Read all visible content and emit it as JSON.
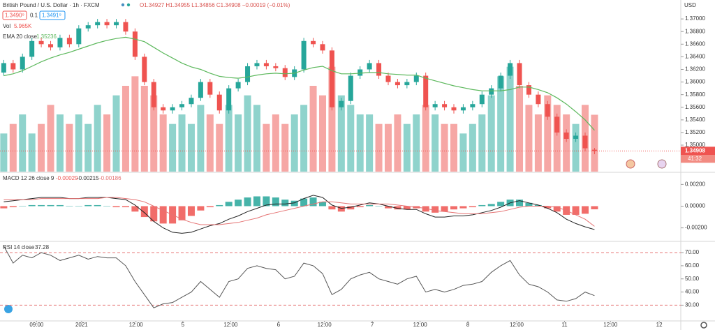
{
  "header": {
    "symbol": "British Pound / U.S. Dollar · 1h · FXCM",
    "ohlc": "O1.34927 H1.34955 L1.34856 C1.34908 −0.00019 (−0.01%)",
    "bid": "1.3490⁹",
    "spread": "0.1",
    "ask": "1.3491⁹"
  },
  "chart_data": [
    {
      "type": "candlestick",
      "up_color": "#26a69a",
      "down_color": "#ef5350",
      "y_unit": "USD",
      "last_price_label": "1.34908",
      "countdown": "41:32",
      "xlim": [
        -0.4,
        72.2
      ],
      "x_ticks": [
        {
          "value": 3.5,
          "label": "09:00"
        },
        {
          "value": 8.3,
          "label": "2021"
        },
        {
          "value": 14.1,
          "label": "12:00"
        },
        {
          "value": 19.1,
          "label": "5"
        },
        {
          "value": 24.2,
          "label": "12:00"
        },
        {
          "value": 29.3,
          "label": "6"
        },
        {
          "value": 34.2,
          "label": "12:00"
        },
        {
          "value": 39.3,
          "label": "7"
        },
        {
          "value": 44.4,
          "label": "12:00"
        },
        {
          "value": 49.5,
          "label": "8"
        },
        {
          "value": 54.7,
          "label": "12:00"
        },
        {
          "value": 59.8,
          "label": "11"
        },
        {
          "value": 64.7,
          "label": "12:00"
        },
        {
          "value": 69.9,
          "label": "12"
        }
      ],
      "ylim": [
        1.3458,
        1.373
      ],
      "yticks": [
        {
          "value": 1.35,
          "label": "1.35000"
        },
        {
          "value": 1.352,
          "label": "1.35200"
        },
        {
          "value": 1.354,
          "label": "1.35400"
        },
        {
          "value": 1.356,
          "label": "1.35600"
        },
        {
          "value": 1.358,
          "label": "1.35800"
        },
        {
          "value": 1.36,
          "label": "1.36000"
        },
        {
          "value": 1.362,
          "label": "1.36200"
        },
        {
          "value": 1.364,
          "label": "1.36400"
        },
        {
          "value": 1.366,
          "label": "1.36600"
        },
        {
          "value": 1.368,
          "label": "1.36800"
        },
        {
          "value": 1.37,
          "label": "1.37000"
        }
      ],
      "open": [
        1.3615,
        1.363,
        1.362,
        1.364,
        1.3665,
        1.366,
        1.3655,
        1.367,
        1.366,
        1.3685,
        1.369,
        1.3695,
        1.369,
        1.3695,
        1.368,
        1.364,
        1.36,
        1.356,
        1.3555,
        1.356,
        1.3565,
        1.3575,
        1.36,
        1.358,
        1.3555,
        1.359,
        1.36,
        1.3625,
        1.363,
        1.3625,
        1.3622,
        1.3608,
        1.362,
        1.3665,
        1.366,
        1.365,
        1.356,
        1.357,
        1.361,
        1.362,
        1.363,
        1.361,
        1.36,
        1.3595,
        1.36,
        1.361,
        1.356,
        1.3565,
        1.356,
        1.3555,
        1.356,
        1.3565,
        1.358,
        1.359,
        1.361,
        1.363,
        1.3595,
        1.358,
        1.3565,
        1.3545,
        1.352,
        1.351,
        1.3515,
        1.34927
      ],
      "high": [
        1.3635,
        1.3635,
        1.3645,
        1.367,
        1.367,
        1.3665,
        1.3675,
        1.3675,
        1.369,
        1.3695,
        1.37,
        1.37,
        1.37,
        1.37,
        1.3685,
        1.3645,
        1.3605,
        1.3565,
        1.3565,
        1.357,
        1.358,
        1.3605,
        1.3605,
        1.3585,
        1.3595,
        1.3605,
        1.363,
        1.3635,
        1.3635,
        1.363,
        1.3627,
        1.3625,
        1.367,
        1.367,
        1.3665,
        1.3655,
        1.3575,
        1.3615,
        1.3625,
        1.3635,
        1.3635,
        1.3615,
        1.3605,
        1.3605,
        1.3615,
        1.3615,
        1.357,
        1.357,
        1.3565,
        1.3565,
        1.357,
        1.3585,
        1.3595,
        1.3615,
        1.3635,
        1.3635,
        1.36,
        1.3585,
        1.357,
        1.355,
        1.3525,
        1.352,
        1.352,
        1.34955
      ],
      "low": [
        1.361,
        1.3615,
        1.3615,
        1.3635,
        1.3655,
        1.365,
        1.365,
        1.3655,
        1.3655,
        1.368,
        1.3685,
        1.3685,
        1.3685,
        1.3675,
        1.3635,
        1.3595,
        1.3555,
        1.355,
        1.355,
        1.3555,
        1.356,
        1.357,
        1.3575,
        1.355,
        1.355,
        1.3585,
        1.3595,
        1.362,
        1.362,
        1.3617,
        1.3603,
        1.3603,
        1.3615,
        1.3655,
        1.3645,
        1.3555,
        1.3555,
        1.3565,
        1.3605,
        1.3615,
        1.3605,
        1.3595,
        1.359,
        1.359,
        1.3595,
        1.3555,
        1.3555,
        1.3555,
        1.355,
        1.355,
        1.3555,
        1.356,
        1.3575,
        1.3585,
        1.3605,
        1.359,
        1.3575,
        1.356,
        1.354,
        1.3515,
        1.3505,
        1.3505,
        1.349,
        1.34856
      ],
      "close": [
        1.363,
        1.362,
        1.364,
        1.3665,
        1.366,
        1.3655,
        1.367,
        1.366,
        1.3685,
        1.369,
        1.3695,
        1.369,
        1.3695,
        1.368,
        1.364,
        1.36,
        1.356,
        1.3555,
        1.356,
        1.3565,
        1.3575,
        1.36,
        1.358,
        1.3555,
        1.359,
        1.36,
        1.3625,
        1.363,
        1.3625,
        1.3622,
        1.3608,
        1.362,
        1.3665,
        1.366,
        1.365,
        1.356,
        1.357,
        1.361,
        1.362,
        1.363,
        1.361,
        1.36,
        1.3595,
        1.36,
        1.361,
        1.356,
        1.3565,
        1.356,
        1.3555,
        1.356,
        1.3565,
        1.358,
        1.359,
        1.361,
        1.363,
        1.3595,
        1.358,
        1.3565,
        1.3545,
        1.352,
        1.351,
        1.3515,
        1.3495,
        1.34908
      ],
      "ema": {
        "name": "EMA 20 close",
        "value_label": "1.35236",
        "color": "#5cb85c",
        "values": [
          1.361,
          1.3613,
          1.3618,
          1.3625,
          1.3632,
          1.3638,
          1.3643,
          1.3647,
          1.3652,
          1.3657,
          1.3662,
          1.3666,
          1.3669,
          1.3671,
          1.3668,
          1.3664,
          1.3655,
          1.3646,
          1.3638,
          1.363,
          1.3624,
          1.362,
          1.3614,
          1.3609,
          1.3607,
          1.3606,
          1.3608,
          1.3611,
          1.3613,
          1.3614,
          1.3613,
          1.3614,
          1.3619,
          1.3623,
          1.3625,
          1.3618,
          1.3613,
          1.3613,
          1.3614,
          1.3615,
          1.3615,
          1.3613,
          1.3612,
          1.3611,
          1.3611,
          1.3606,
          1.3602,
          1.3598,
          1.3594,
          1.3591,
          1.3588,
          1.3586,
          1.3586,
          1.3586,
          1.3588,
          1.3592,
          1.3592,
          1.3588,
          1.3583,
          1.3575,
          1.3565,
          1.3553,
          1.354,
          1.35236
        ]
      },
      "volume": {
        "name": "Vol",
        "value_label": "5.965K",
        "up_color": "#8fd3cc",
        "down_color": "#f6a7a5",
        "ylim": [
          0,
          18
        ],
        "values": [
          4,
          5,
          6,
          4,
          5,
          7,
          6,
          5,
          6,
          5,
          7,
          6,
          8,
          9,
          10,
          9,
          8,
          6,
          5,
          6,
          5,
          7,
          6,
          5,
          7,
          6,
          8,
          7,
          5,
          6,
          5,
          6,
          7,
          9,
          8,
          11,
          8,
          7,
          6,
          6,
          5,
          5,
          6,
          5,
          6,
          7,
          6,
          5,
          5,
          4,
          5,
          6,
          8,
          10,
          11,
          9,
          7,
          6,
          8,
          7,
          6,
          5,
          7,
          5.965
        ]
      }
    },
    {
      "type": "macd",
      "name": "MACD 12 26 close 9",
      "hist_label": "-0.00029",
      "macd_label": "-0.00215",
      "signal_label": "-0.00186",
      "macd_color": "#222222",
      "signal_color": "#e57373",
      "up_color": "#26a69a",
      "down_color": "#ef5350",
      "ylim": [
        -0.00318,
        0.00305
      ],
      "yticks": [
        {
          "value": -0.002,
          "label": "-0.00200"
        },
        {
          "value": 0,
          "label": "0.00000"
        },
        {
          "value": 0.002,
          "label": "0.00200"
        }
      ],
      "macd": [
        0.0004,
        0.0005,
        0.0006,
        0.0007,
        0.0008,
        0.0008,
        0.0008,
        0.0007,
        0.0007,
        0.0008,
        0.0008,
        0.0008,
        0.0007,
        0.0006,
        0.0001,
        -0.0006,
        -0.0014,
        -0.002,
        -0.0024,
        -0.0025,
        -0.0024,
        -0.0021,
        -0.0018,
        -0.0016,
        -0.0012,
        -0.0009,
        -0.0005,
        -0.0002,
        0.0001,
        0.0002,
        0.0002,
        0.0003,
        0.0007,
        0.001,
        0.0008,
        0.0001,
        -0.0002,
        -0.0001,
        0.0001,
        0.0003,
        0.0002,
        0.0,
        -0.0002,
        -0.0003,
        -0.0003,
        -0.0007,
        -0.001,
        -0.001,
        -0.0009,
        -0.0009,
        -0.0008,
        -0.0006,
        -0.0004,
        -0.0001,
        0.0003,
        0.0005,
        0.0003,
        0.0001,
        -0.0002,
        -0.0006,
        -0.0012,
        -0.0016,
        -0.0019,
        -0.00215
      ],
      "signal": [
        0.0006,
        0.0006,
        0.0006,
        0.0006,
        0.0007,
        0.0007,
        0.0007,
        0.0007,
        0.0007,
        0.0007,
        0.0007,
        0.0008,
        0.0008,
        0.0007,
        0.0006,
        0.0004,
        0.0,
        -0.0004,
        -0.0008,
        -0.0012,
        -0.0015,
        -0.0017,
        -0.0017,
        -0.0017,
        -0.0016,
        -0.0015,
        -0.0013,
        -0.0011,
        -0.0008,
        -0.0006,
        -0.0004,
        -0.0002,
        0.0,
        0.0002,
        0.0004,
        0.0004,
        0.0003,
        0.0002,
        0.0002,
        0.0002,
        0.0002,
        0.0002,
        0.0001,
        0.0,
        -0.0001,
        -0.0002,
        -0.0004,
        -0.0005,
        -0.0006,
        -0.0007,
        -0.0007,
        -0.0007,
        -0.0006,
        -0.0005,
        -0.0003,
        -0.0001,
        0.0,
        0.0,
        0.0,
        -0.0001,
        -0.0004,
        -0.0008,
        -0.0012,
        -0.00186
      ],
      "histogram": [
        -0.0002,
        -0.0001,
        0.0,
        0.0001,
        0.0001,
        0.0001,
        0.0001,
        0.0,
        0.0,
        0.0001,
        0.0001,
        0.0,
        -0.0001,
        -0.0001,
        -0.0005,
        -0.001,
        -0.0014,
        -0.0016,
        -0.0016,
        -0.0013,
        -0.0009,
        -0.0004,
        -0.0001,
        0.0001,
        0.0004,
        0.0006,
        0.0008,
        0.0009,
        0.0009,
        0.0008,
        0.0006,
        0.0005,
        0.0007,
        0.0008,
        0.0004,
        -0.0003,
        -0.0005,
        -0.0003,
        -0.0001,
        0.0001,
        0.0,
        -0.0002,
        -0.0003,
        -0.0003,
        -0.0002,
        -0.0005,
        -0.0006,
        -0.0005,
        -0.0003,
        -0.0002,
        -0.0001,
        0.0001,
        0.0002,
        0.0004,
        0.0006,
        0.0006,
        0.0003,
        0.0001,
        -0.0002,
        -0.0005,
        -0.0008,
        -0.0008,
        -0.0007,
        -0.00029
      ]
    },
    {
      "type": "rsi",
      "name": "RSI 14 close",
      "value_label": "37.28",
      "color": "#555555",
      "band_color": "#e57373",
      "ylim": [
        18,
        78
      ],
      "bands": [
        30,
        70
      ],
      "yticks": [
        {
          "value": 30,
          "label": "30.00"
        },
        {
          "value": 40,
          "label": "40.00"
        },
        {
          "value": 50,
          "label": "50.00"
        },
        {
          "value": 60,
          "label": "60.00"
        },
        {
          "value": 70,
          "label": "70.00"
        }
      ],
      "values": [
        75,
        62,
        68,
        66,
        70,
        68,
        64,
        66,
        68,
        65,
        67,
        66,
        66,
        60,
        48,
        38,
        28,
        31,
        32,
        36,
        40,
        48,
        42,
        36,
        48,
        50,
        58,
        60,
        58,
        57,
        50,
        52,
        62,
        60,
        54,
        38,
        42,
        50,
        53,
        55,
        50,
        48,
        46,
        50,
        52,
        40,
        42,
        40,
        42,
        45,
        46,
        48,
        55,
        60,
        64,
        53,
        46,
        44,
        40,
        34,
        33,
        35,
        40,
        37.28
      ]
    }
  ]
}
